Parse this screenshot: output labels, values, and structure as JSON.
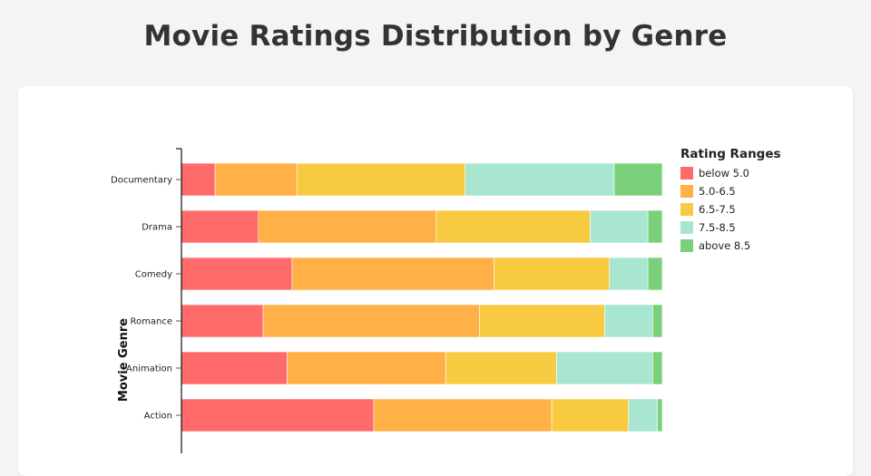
{
  "chart_data": {
    "type": "bar",
    "orientation": "horizontal",
    "stacked": true,
    "normalized": true,
    "title": "Movie Ratings Distribution by Genre",
    "xlabel": "",
    "ylabel": "Movie Genre",
    "xlim": [
      0,
      100
    ],
    "categories": [
      "Documentary",
      "Drama",
      "Comedy",
      "Romance",
      "Animation",
      "Action"
    ],
    "series": [
      {
        "name": "below 5.0",
        "color": "#ff6b6b",
        "values": [
          7,
          16,
          23,
          17,
          22,
          40
        ]
      },
      {
        "name": "5.0-6.5",
        "color": "#ffb046",
        "values": [
          17,
          37,
          42,
          45,
          33,
          37
        ]
      },
      {
        "name": "6.5-7.5",
        "color": "#f8ca42",
        "values": [
          35,
          32,
          24,
          26,
          23,
          16
        ]
      },
      {
        "name": "7.5-8.5",
        "color": "#a8e6cf",
        "values": [
          31,
          12,
          8,
          10,
          20,
          6
        ]
      },
      {
        "name": "above 8.5",
        "color": "#7bd17b",
        "values": [
          10,
          3,
          3,
          2,
          2,
          1
        ]
      }
    ],
    "legend": {
      "title": "Rating Ranges",
      "placement": "right"
    },
    "grid": false
  }
}
